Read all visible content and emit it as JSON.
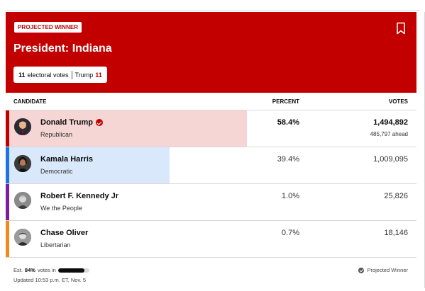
{
  "header": {
    "badge": "PROJECTED WINNER",
    "title": "President: Indiana",
    "ev_count": "11",
    "ev_label": "electoral votes",
    "ev_winner": "Trump",
    "ev_winner_count": "11",
    "bookmark_icon": "bookmark-icon"
  },
  "table": {
    "col_candidate": "CANDIDATE",
    "col_percent": "PERCENT",
    "col_votes": "VOTES",
    "rows": [
      {
        "name": "Donald Trump",
        "party": "Republican",
        "percent": "58.4%",
        "votes": "1,494,892",
        "ahead": "485,797 ahead",
        "winner": true,
        "share": 0.584,
        "color": "#c20000",
        "fill": "#f6d5d5"
      },
      {
        "name": "Kamala Harris",
        "party": "Democratic",
        "percent": "39.4%",
        "votes": "1,009,095",
        "share": 0.394,
        "color": "#1a73e8",
        "fill": "#d9e8fb"
      },
      {
        "name": "Robert F. Kennedy Jr",
        "party": "We the People",
        "percent": "1.0%",
        "votes": "25,826",
        "share": 0.01,
        "color": "#7a1fa2"
      },
      {
        "name": "Chase Oliver",
        "party": "Libertarian",
        "percent": "0.7%",
        "votes": "18,146",
        "share": 0.007,
        "color": "#f08a1c"
      }
    ]
  },
  "footer": {
    "est_prefix": "Est.",
    "est_value": "84%",
    "est_suffix": "votes in",
    "est_fraction": 0.84,
    "updated": "Updated 10:53 p.m. ET, Nov. 5",
    "projected": "Projected Winner"
  },
  "colors": {
    "header_bg": "#c20000"
  }
}
